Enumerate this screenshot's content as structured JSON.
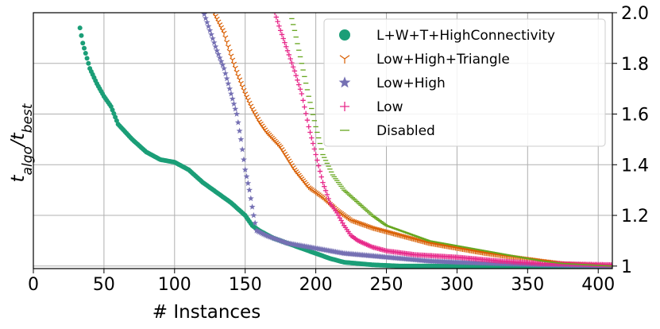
{
  "chart_data": {
    "type": "scatter",
    "title": "",
    "xlabel": "# Instances",
    "ylabel_main": "t",
    "ylabel_sub_algo": "algo",
    "ylabel_slash": "/",
    "ylabel_sub_best": "best",
    "xlim": [
      0,
      410
    ],
    "ylim": [
      0.99,
      2.0
    ],
    "x_ticks": [
      0,
      50,
      100,
      150,
      200,
      250,
      300,
      350,
      400
    ],
    "x_tick_labels": [
      "0",
      "50",
      "100",
      "150",
      "200",
      "250",
      "300",
      "350",
      "400"
    ],
    "y_ticks": [
      1.0,
      1.2,
      1.4,
      1.6,
      1.8,
      2.0
    ],
    "y_tick_labels": [
      "1",
      "1.2",
      "1.4",
      "1.6",
      "1.8",
      "2.0"
    ],
    "y_grid_extra": [
      1.0,
      1.2,
      1.4,
      1.6,
      1.8,
      2.0
    ],
    "grid": true,
    "legend_position": "top-right",
    "series": [
      {
        "name": "L+W+T+HighConnectivity",
        "marker": "circle",
        "color": "#1b9e77",
        "count": 410,
        "x_start": 33,
        "keypoints": [
          [
            33,
            1.94
          ],
          [
            35,
            1.88
          ],
          [
            40,
            1.78
          ],
          [
            45,
            1.72
          ],
          [
            50,
            1.67
          ],
          [
            55,
            1.63
          ],
          [
            60,
            1.56
          ],
          [
            70,
            1.5
          ],
          [
            80,
            1.45
          ],
          [
            90,
            1.42
          ],
          [
            100,
            1.41
          ],
          [
            110,
            1.38
          ],
          [
            120,
            1.33
          ],
          [
            130,
            1.29
          ],
          [
            140,
            1.25
          ],
          [
            150,
            1.2
          ],
          [
            155,
            1.16
          ],
          [
            160,
            1.14
          ],
          [
            170,
            1.11
          ],
          [
            180,
            1.09
          ],
          [
            190,
            1.07
          ],
          [
            200,
            1.05
          ],
          [
            210,
            1.03
          ],
          [
            220,
            1.015
          ],
          [
            240,
            1.005
          ],
          [
            260,
            1.0
          ],
          [
            410,
            1.0
          ]
        ]
      },
      {
        "name": "Low+High+Triangle",
        "marker": "tri",
        "color": "#d95f02",
        "count": 410,
        "x_start": 126,
        "keypoints": [
          [
            126,
            2.02
          ],
          [
            135,
            1.92
          ],
          [
            140,
            1.83
          ],
          [
            145,
            1.75
          ],
          [
            150,
            1.68
          ],
          [
            155,
            1.62
          ],
          [
            160,
            1.57
          ],
          [
            165,
            1.53
          ],
          [
            175,
            1.47
          ],
          [
            185,
            1.38
          ],
          [
            195,
            1.31
          ],
          [
            205,
            1.27
          ],
          [
            215,
            1.22
          ],
          [
            225,
            1.18
          ],
          [
            240,
            1.15
          ],
          [
            260,
            1.12
          ],
          [
            280,
            1.09
          ],
          [
            300,
            1.07
          ],
          [
            320,
            1.05
          ],
          [
            340,
            1.035
          ],
          [
            360,
            1.02
          ],
          [
            375,
            1.01
          ],
          [
            410,
            1.0
          ]
        ]
      },
      {
        "name": "Low+High",
        "marker": "star",
        "color": "#7570b3",
        "count": 410,
        "x_start": 120,
        "keypoints": [
          [
            120,
            2.01
          ],
          [
            125,
            1.93
          ],
          [
            130,
            1.85
          ],
          [
            135,
            1.78
          ],
          [
            140,
            1.68
          ],
          [
            144,
            1.6
          ],
          [
            147,
            1.5
          ],
          [
            150,
            1.38
          ],
          [
            153,
            1.3
          ],
          [
            156,
            1.2
          ],
          [
            158,
            1.14
          ],
          [
            165,
            1.12
          ],
          [
            180,
            1.09
          ],
          [
            200,
            1.07
          ],
          [
            220,
            1.05
          ],
          [
            240,
            1.04
          ],
          [
            260,
            1.03
          ],
          [
            280,
            1.02
          ],
          [
            300,
            1.015
          ],
          [
            330,
            1.01
          ],
          [
            360,
            1.005
          ],
          [
            410,
            1.0
          ]
        ]
      },
      {
        "name": "Low",
        "marker": "plus",
        "color": "#e7298a",
        "count": 410,
        "x_start": 171,
        "keypoints": [
          [
            171,
            2.0
          ],
          [
            175,
            1.93
          ],
          [
            180,
            1.85
          ],
          [
            185,
            1.77
          ],
          [
            190,
            1.68
          ],
          [
            195,
            1.55
          ],
          [
            200,
            1.44
          ],
          [
            205,
            1.33
          ],
          [
            210,
            1.25
          ],
          [
            215,
            1.21
          ],
          [
            220,
            1.16
          ],
          [
            225,
            1.12
          ],
          [
            230,
            1.1
          ],
          [
            240,
            1.075
          ],
          [
            250,
            1.06
          ],
          [
            270,
            1.045
          ],
          [
            300,
            1.035
          ],
          [
            330,
            1.02
          ],
          [
            360,
            1.01
          ],
          [
            410,
            1.005
          ]
        ]
      },
      {
        "name": "Disabled",
        "marker": "hline",
        "color": "#66a61e",
        "count": 410,
        "x_start": 182,
        "keypoints": [
          [
            182,
            2.0
          ],
          [
            185,
            1.93
          ],
          [
            190,
            1.8
          ],
          [
            195,
            1.67
          ],
          [
            200,
            1.55
          ],
          [
            205,
            1.44
          ],
          [
            212,
            1.36
          ],
          [
            220,
            1.3
          ],
          [
            230,
            1.25
          ],
          [
            240,
            1.2
          ],
          [
            250,
            1.16
          ],
          [
            265,
            1.13
          ],
          [
            280,
            1.1
          ],
          [
            300,
            1.08
          ],
          [
            320,
            1.06
          ],
          [
            340,
            1.04
          ],
          [
            360,
            1.02
          ],
          [
            375,
            1.01
          ],
          [
            410,
            1.0
          ]
        ]
      }
    ]
  }
}
